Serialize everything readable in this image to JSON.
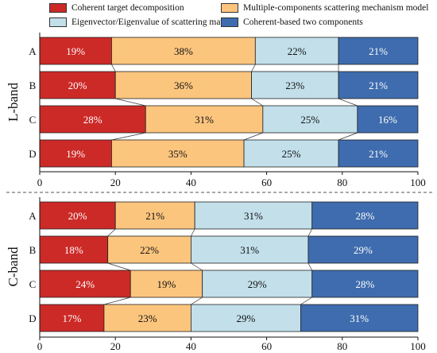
{
  "legend": [
    {
      "label": "Coherent target decomposition",
      "color": "#cc2a27"
    },
    {
      "label": "Multiple-components scattering mechanism model",
      "color": "#fcc57e"
    },
    {
      "label": "Eigenvector/Eigenvalue of scattering matrix",
      "color": "#c2dfea"
    },
    {
      "label": "Coherent-based two components",
      "color": "#3e6cae"
    }
  ],
  "chart_data": [
    {
      "type": "bar",
      "orientation": "horizontal",
      "stacked": true,
      "band_label": "L-band",
      "categories": [
        "A",
        "B",
        "C",
        "D"
      ],
      "series": [
        {
          "name": "Coherent target decomposition",
          "values": [
            19,
            20,
            28,
            19
          ],
          "labels": [
            "19%",
            "20%",
            "28%",
            "19%"
          ]
        },
        {
          "name": "Multiple-components scattering mechanism model",
          "values": [
            38,
            36,
            31,
            35
          ],
          "labels": [
            "38%",
            "36%",
            "31%",
            "35%"
          ]
        },
        {
          "name": "Eigenvector/Eigenvalue of scattering matrix",
          "values": [
            22,
            23,
            25,
            25
          ],
          "labels": [
            "22%",
            "23%",
            "25%",
            "25%"
          ]
        },
        {
          "name": "Coherent-based two components",
          "values": [
            21,
            21,
            16,
            21
          ],
          "labels": [
            "21%",
            "21%",
            "16%",
            "21%"
          ]
        }
      ],
      "xlim": [
        0,
        100
      ],
      "xticks": [
        "0",
        "20",
        "40",
        "60",
        "80",
        "100"
      ]
    },
    {
      "type": "bar",
      "orientation": "horizontal",
      "stacked": true,
      "band_label": "C-band",
      "categories": [
        "A",
        "B",
        "C",
        "D"
      ],
      "series": [
        {
          "name": "Coherent target decomposition",
          "values": [
            20,
            18,
            24,
            17
          ],
          "labels": [
            "20%",
            "18%",
            "24%",
            "17%"
          ]
        },
        {
          "name": "Multiple-components scattering mechanism model",
          "values": [
            21,
            22,
            19,
            23
          ],
          "labels": [
            "21%",
            "22%",
            "19%",
            "23%"
          ]
        },
        {
          "name": "Eigenvector/Eigenvalue of scattering matrix",
          "values": [
            31,
            31,
            29,
            29
          ],
          "labels": [
            "31%",
            "31%",
            "29%",
            "29%"
          ]
        },
        {
          "name": "Coherent-based two components",
          "values": [
            28,
            29,
            28,
            31
          ],
          "labels": [
            "28%",
            "29%",
            "28%",
            "31%"
          ]
        }
      ],
      "xlim": [
        0,
        100
      ],
      "xticks": [
        "0",
        "20",
        "40",
        "60",
        "80",
        "100"
      ]
    }
  ]
}
